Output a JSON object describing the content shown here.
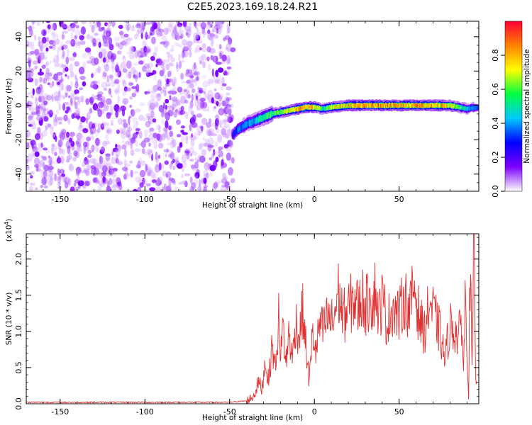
{
  "figure": {
    "title": "C2E5.2023.169.18.24.R21"
  },
  "colorbar": {
    "label": "Normalized spectral amplitude",
    "ticks": [
      "0.0",
      "0.2",
      "0.4",
      "0.6",
      "0.8"
    ],
    "range": [
      0,
      1
    ],
    "colormap": [
      "#ffffff",
      "#7f00ff",
      "#0000ff",
      "#00c8ff",
      "#00ff40",
      "#ffff00",
      "#ff8000",
      "#ff0033"
    ]
  },
  "chart_data": [
    {
      "type": "heatmap",
      "xlabel": "Height of straight line (km)",
      "ylabel": "Frequency (Hz)",
      "xlim": [
        -170,
        97
      ],
      "ylim": [
        -50,
        49
      ],
      "x_ticks": [
        "-150",
        "-100",
        "-50",
        "0",
        "50"
      ],
      "y_ticks": [
        "-40",
        "-20",
        "0",
        "20",
        "40"
      ],
      "ridge": {
        "x": [
          -48,
          -45,
          -40,
          -35,
          -30,
          -25,
          -20,
          -15,
          -10,
          -5,
          0,
          5,
          10,
          20,
          30,
          40,
          50,
          60,
          70,
          80,
          90,
          96
        ],
        "y": [
          -17,
          -14,
          -11,
          -9,
          -7,
          -5,
          -4,
          -3,
          -2,
          -1,
          -1,
          -2,
          -1,
          0,
          0,
          0,
          0,
          0,
          0,
          0,
          -2,
          -1
        ],
        "peak_amplitude": [
          0.3,
          0.4,
          0.45,
          0.5,
          0.6,
          0.65,
          0.7,
          0.8,
          0.95,
          0.95,
          0.9,
          0.6,
          0.8,
          0.9,
          0.95,
          0.95,
          0.9,
          0.95,
          0.9,
          0.85,
          0.5,
          0.4
        ]
      },
      "noise_region_x": [
        -170,
        -48
      ]
    },
    {
      "type": "line",
      "xlabel": "Height of straight line (km)",
      "ylabel": "SNR (10 * v/v)",
      "multiplier": "(x10^4)",
      "xlim": [
        -170,
        97
      ],
      "ylim": [
        0,
        2.35
      ],
      "x_ticks": [
        "-150",
        "-100",
        "-50",
        "0",
        "50"
      ],
      "y_ticks": [
        "0.0",
        "0.5",
        "1.0",
        "1.5",
        "2.0"
      ],
      "color": "#e03030",
      "series": [
        {
          "x": [
            -170,
            -160,
            -150,
            -140,
            -130,
            -120,
            -110,
            -100,
            -90,
            -80,
            -70,
            -60,
            -50,
            -45,
            -40,
            -36,
            -33,
            -31,
            -29,
            -27,
            -25,
            -23,
            -21,
            -20,
            -19,
            -18,
            -17,
            -15,
            -13,
            -11,
            -9,
            -7,
            -5,
            -3,
            -1,
            1,
            3,
            5,
            8,
            11,
            14,
            17,
            20,
            22,
            24,
            26,
            28,
            30,
            32,
            33,
            34,
            36,
            38,
            40,
            43,
            46,
            50,
            53,
            56,
            59,
            61,
            63,
            65,
            68,
            71,
            74,
            77,
            80,
            83,
            85,
            87,
            88,
            89,
            90,
            91,
            92,
            93,
            94,
            95,
            96
          ],
          "y": [
            0.02,
            0.02,
            0.02,
            0.02,
            0.02,
            0.02,
            0.02,
            0.02,
            0.02,
            0.02,
            0.02,
            0.02,
            0.02,
            0.03,
            0.04,
            0.1,
            0.3,
            0.2,
            0.6,
            0.3,
            0.8,
            0.5,
            1.2,
            0.4,
            1.3,
            0.9,
            0.5,
            1.0,
            0.6,
            1.15,
            0.9,
            1.3,
            0.8,
            0.3,
            1.0,
            0.7,
            1.1,
            1.0,
            1.2,
            1.1,
            1.55,
            1.2,
            1.3,
            1.4,
            1.45,
            1.3,
            1.5,
            1.35,
            1.4,
            1.78,
            1.3,
            1.6,
            1.2,
            1.45,
            1.1,
            1.35,
            1.2,
            1.5,
            1.25,
            1.65,
            1.3,
            1.1,
            1.0,
            1.4,
            1.2,
            1.0,
            0.6,
            1.1,
            1.0,
            0.9,
            1.2,
            0.4,
            1.5,
            0.9,
            0.1,
            2.1,
            0.3,
            2.35,
            0.5,
            0.2
          ]
        }
      ]
    }
  ]
}
